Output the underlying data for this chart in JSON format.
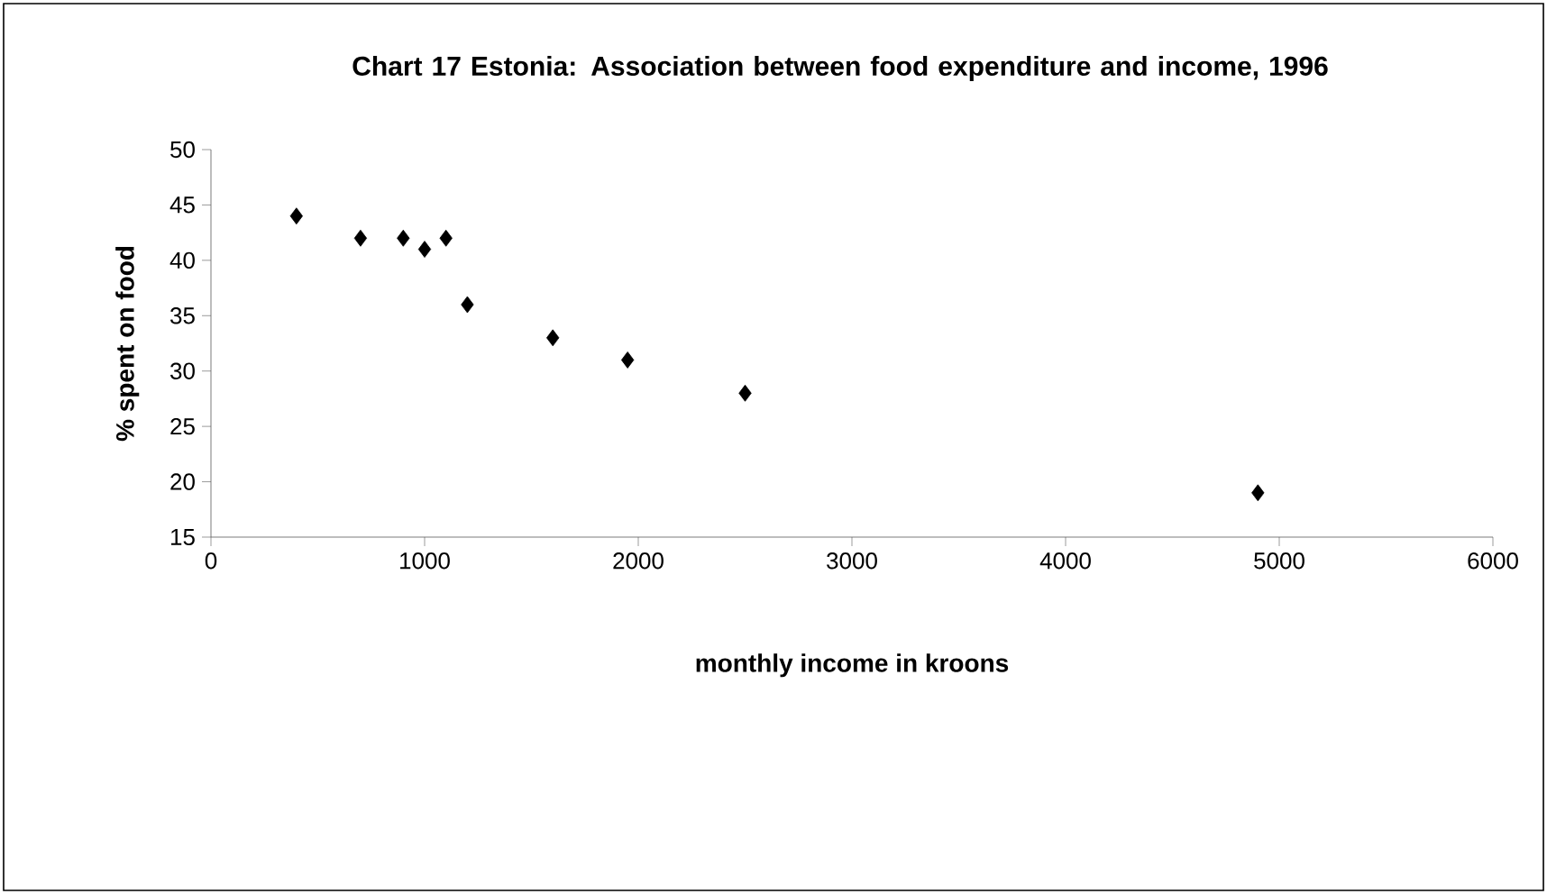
{
  "chart_data": {
    "type": "scatter",
    "title": "Chart 17  Estonia: Association between food expenditure and income, 1996",
    "xlabel": "monthly income in kroons",
    "ylabel": "% spent on food",
    "x": [
      400,
      700,
      900,
      1000,
      1100,
      1200,
      1600,
      1950,
      2500,
      4900
    ],
    "values": [
      44,
      42,
      42,
      41,
      42,
      36,
      33,
      31,
      28,
      19
    ],
    "color": "#000000",
    "marker": "diamond",
    "xlim": [
      0,
      6000
    ],
    "ylim": [
      15,
      50
    ],
    "xticks": [
      0,
      1000,
      2000,
      3000,
      4000,
      5000,
      6000
    ],
    "yticks": [
      15,
      20,
      25,
      30,
      35,
      40,
      45,
      50
    ]
  }
}
